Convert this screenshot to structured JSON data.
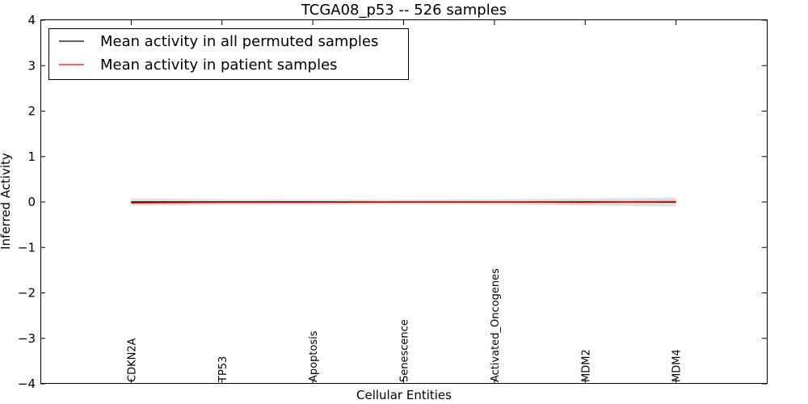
{
  "chart_data": {
    "type": "line",
    "title": "TCGA08_p53 -- 526 samples",
    "xlabel": "Cellular Entities",
    "ylabel": "Inferred Activity",
    "ylim": [
      -4,
      4
    ],
    "yticks": [
      4,
      3,
      2,
      1,
      0,
      -1,
      -2,
      -3,
      -4
    ],
    "ytick_labels": [
      "4",
      "3",
      "2",
      "1",
      "0",
      "−1",
      "−2",
      "−3",
      "−4"
    ],
    "xlim": [
      -1,
      7
    ],
    "categories": [
      "CDKN2A",
      "TP53",
      "Apoptosis",
      "Senescence",
      "Activated_Oncogenes",
      "MDM2",
      "MDM4"
    ],
    "legend_position": "top-left",
    "series": [
      {
        "name": "Mean activity in all permuted samples",
        "color": "#000000",
        "values": [
          0.0,
          0.0,
          0.0,
          0.0,
          0.0,
          0.0,
          0.0
        ],
        "band_lower": [
          -0.08,
          -0.06,
          -0.06,
          -0.05,
          -0.06,
          -0.08,
          -0.1
        ],
        "band_upper": [
          0.08,
          0.06,
          0.06,
          0.05,
          0.06,
          0.08,
          0.1
        ],
        "band_color": "#c8c8c8"
      },
      {
        "name": "Mean activity in patient samples",
        "color": "#ff0000",
        "values": [
          -0.02,
          -0.01,
          -0.01,
          0.0,
          0.0,
          -0.01,
          0.01
        ],
        "band_lower": [
          -0.05,
          -0.03,
          -0.02,
          -0.02,
          -0.02,
          -0.04,
          -0.03
        ],
        "band_upper": [
          0.02,
          0.01,
          0.01,
          0.02,
          0.02,
          0.03,
          0.04
        ],
        "band_color": "#f0b0b0"
      }
    ]
  }
}
